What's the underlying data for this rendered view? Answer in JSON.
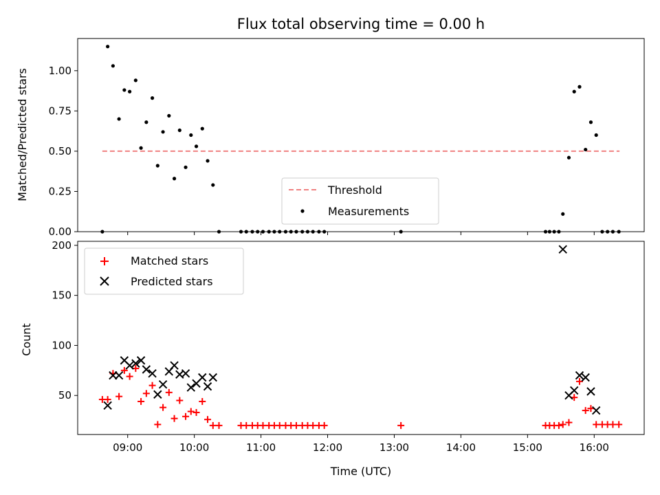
{
  "chart_data": [
    {
      "type": "scatter",
      "title": "Flux total observing time = 0.00 h",
      "ylabel": "Matched/Predicted stars",
      "xlabel": "",
      "xlim": [
        8.25,
        16.75
      ],
      "ylim": [
        0,
        1.2
      ],
      "yticks": [
        0.0,
        0.25,
        0.5,
        0.75,
        1.0
      ],
      "ytick_labels": [
        "0.00",
        "0.25",
        "0.50",
        "0.75",
        "1.00"
      ],
      "legend_position": "lower-center",
      "threshold": {
        "name": "Threshold",
        "y": 0.5,
        "x": [
          8.62,
          16.38
        ],
        "color": "#f08080"
      },
      "series": [
        {
          "name": "Measurements",
          "color": "#000000",
          "marker": "dot",
          "x": [
            8.62,
            8.7,
            8.78,
            8.87,
            8.95,
            9.03,
            9.12,
            9.2,
            9.28,
            9.37,
            9.45,
            9.53,
            9.62,
            9.7,
            9.78,
            9.87,
            9.95,
            10.03,
            10.12,
            10.2,
            10.28,
            10.37,
            10.7,
            10.78,
            10.87,
            10.95,
            11.03,
            11.12,
            11.2,
            11.28,
            11.37,
            11.45,
            11.53,
            11.62,
            11.7,
            11.78,
            11.87,
            11.95,
            13.1,
            15.27,
            15.33,
            15.4,
            15.47,
            15.53,
            15.62,
            15.7,
            15.78,
            15.87,
            15.95,
            16.03,
            16.12,
            16.2,
            16.28,
            16.37
          ],
          "y": [
            0.0,
            1.15,
            1.03,
            0.7,
            0.88,
            0.87,
            0.94,
            0.52,
            0.68,
            0.83,
            0.41,
            0.62,
            0.72,
            0.33,
            0.63,
            0.4,
            0.6,
            0.53,
            0.64,
            0.44,
            0.29,
            0.0,
            0.0,
            0.0,
            0.0,
            0.0,
            0.0,
            0.0,
            0.0,
            0.0,
            0.0,
            0.0,
            0.0,
            0.0,
            0.0,
            0.0,
            0.0,
            0.0,
            0.0,
            0.0,
            0.0,
            0.0,
            0.0,
            0.11,
            0.46,
            0.87,
            0.9,
            0.51,
            0.68,
            0.6,
            0.0,
            0.0,
            0.0,
            0.0
          ]
        }
      ]
    },
    {
      "type": "scatter",
      "title": "",
      "xlabel": "Time (UTC)",
      "ylabel": "Count",
      "xlim": [
        8.25,
        16.75
      ],
      "ylim": [
        11,
        204
      ],
      "yticks": [
        50,
        100,
        150,
        200
      ],
      "ytick_labels": [
        "50",
        "100",
        "150",
        "200"
      ],
      "xticks": [
        9,
        10,
        11,
        12,
        13,
        14,
        15,
        16
      ],
      "xtick_labels": [
        "09:00",
        "10:00",
        "11:00",
        "12:00",
        "13:00",
        "14:00",
        "15:00",
        "16:00"
      ],
      "legend_position": "upper-left",
      "series": [
        {
          "name": "Matched stars",
          "color": "#ff0000",
          "marker": "plus",
          "x": [
            8.62,
            8.7,
            8.78,
            8.87,
            8.95,
            9.03,
            9.12,
            9.2,
            9.28,
            9.37,
            9.45,
            9.53,
            9.62,
            9.7,
            9.78,
            9.87,
            9.95,
            10.03,
            10.12,
            10.2,
            10.28,
            10.37,
            10.7,
            10.78,
            10.87,
            10.95,
            11.03,
            11.12,
            11.2,
            11.28,
            11.37,
            11.45,
            11.53,
            11.62,
            11.7,
            11.78,
            11.87,
            11.95,
            13.1,
            15.27,
            15.33,
            15.4,
            15.47,
            15.53,
            15.62,
            15.7,
            15.78,
            15.87,
            15.95,
            16.03,
            16.12,
            16.2,
            16.28,
            16.37
          ],
          "y": [
            46,
            46,
            72,
            49,
            75,
            69,
            77,
            44,
            52,
            60,
            21,
            38,
            53,
            27,
            45,
            29,
            34,
            33,
            44,
            26,
            20,
            20,
            20,
            20,
            20,
            20,
            20,
            20,
            20,
            20,
            20,
            20,
            20,
            20,
            20,
            20,
            20,
            20,
            20,
            20,
            20,
            20,
            20,
            21,
            23,
            48,
            64,
            35,
            37,
            21,
            21,
            21,
            21,
            21
          ]
        },
        {
          "name": "Predicted stars",
          "color": "#000000",
          "marker": "x",
          "x": [
            8.7,
            8.78,
            8.87,
            8.95,
            9.03,
            9.12,
            9.2,
            9.28,
            9.37,
            9.45,
            9.53,
            9.62,
            9.7,
            9.78,
            9.87,
            9.95,
            10.03,
            10.12,
            10.2,
            10.28,
            15.53,
            15.62,
            15.7,
            15.78,
            15.87,
            15.95,
            16.03
          ],
          "y": [
            40,
            70,
            70,
            85,
            80,
            82,
            85,
            76,
            72,
            51,
            61,
            74,
            80,
            71,
            72,
            58,
            62,
            68,
            59,
            68,
            196,
            50,
            55,
            70,
            68,
            54,
            35
          ]
        }
      ]
    }
  ]
}
